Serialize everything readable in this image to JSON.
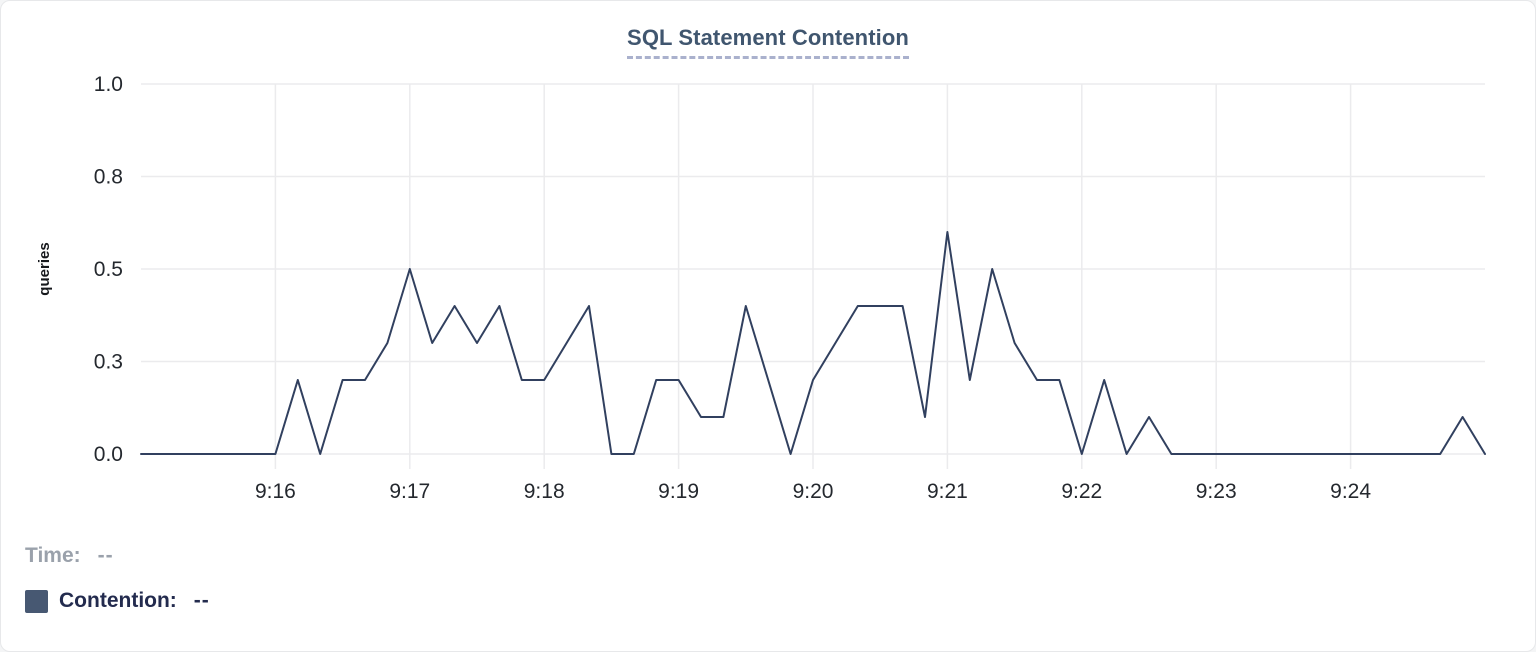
{
  "card": {
    "title": "SQL Statement Contention"
  },
  "legend": {
    "time_label": "Time:",
    "time_value": "--",
    "series_label": "Contention:",
    "series_value": "--",
    "swatch_color": "#475872"
  },
  "chart_data": {
    "type": "line",
    "title": "SQL Statement Contention",
    "xlabel": "",
    "ylabel": "queries",
    "ylim": [
      0,
      1
    ],
    "grid": true,
    "legend_position": "bottom-left",
    "x_start": "9:15:00",
    "x_end": "9:25:00",
    "interval_seconds": 10,
    "x_tick_labels": [
      "9:16",
      "9:17",
      "9:18",
      "9:19",
      "9:20",
      "9:21",
      "9:22",
      "9:23",
      "9:24"
    ],
    "y_ticks": [
      {
        "value": 0.0,
        "label": "0.0"
      },
      {
        "value": 0.25,
        "label": "0.3"
      },
      {
        "value": 0.5,
        "label": "0.5"
      },
      {
        "value": 0.75,
        "label": "0.8"
      },
      {
        "value": 1.0,
        "label": "1.0"
      }
    ],
    "series": [
      {
        "name": "Contention",
        "color": "#31405f",
        "values": [
          0,
          0,
          0,
          0,
          0,
          0,
          0,
          0.2,
          0,
          0.2,
          0.2,
          0.3,
          0.5,
          0.3,
          0.4,
          0.3,
          0.4,
          0.2,
          0.2,
          0.3,
          0.4,
          0,
          0,
          0.2,
          0.2,
          0.1,
          0.1,
          0.4,
          0.2,
          0,
          0.2,
          0.3,
          0.4,
          0.4,
          0.4,
          0.1,
          0.6,
          0.2,
          0.5,
          0.3,
          0.2,
          0.2,
          0,
          0.2,
          0,
          0.1,
          0,
          0,
          0,
          0,
          0,
          0,
          0,
          0,
          0,
          0,
          0,
          0,
          0,
          0.1,
          0
        ]
      }
    ]
  }
}
